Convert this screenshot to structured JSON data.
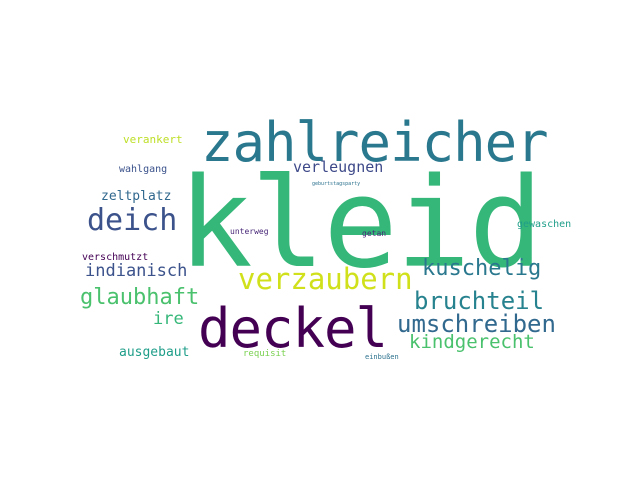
{
  "words": [
    {
      "text": "kleid",
      "color": "#35b779"
    },
    {
      "text": "zahlreicher",
      "color": "#2a788e"
    },
    {
      "text": "deckel",
      "color": "#440154"
    },
    {
      "text": "verzaubern",
      "color": "#d0e11c"
    },
    {
      "text": "deich",
      "color": "#3b528b"
    },
    {
      "text": "umschreiben",
      "color": "#31688e"
    },
    {
      "text": "bruchteil",
      "color": "#26828e"
    },
    {
      "text": "kuschelig",
      "color": "#2a788e"
    },
    {
      "text": "glaubhaft",
      "color": "#4ac16d"
    },
    {
      "text": "kindgerecht",
      "color": "#4ac16d"
    },
    {
      "text": "indianisch",
      "color": "#3b528b"
    },
    {
      "text": "verleugnen",
      "color": "#3e4989"
    },
    {
      "text": "ire",
      "color": "#35b779"
    },
    {
      "text": "zeltplatz",
      "color": "#31688e"
    },
    {
      "text": "ausgebaut",
      "color": "#1f9e89"
    },
    {
      "text": "verankert",
      "color": "#bddf26"
    },
    {
      "text": "wahlgang",
      "color": "#3b528b"
    },
    {
      "text": "verschmutzt",
      "color": "#440154"
    },
    {
      "text": "gewaschen",
      "color": "#1f9e89"
    },
    {
      "text": "requisit",
      "color": "#7ad151"
    },
    {
      "text": "unterweg",
      "color": "#482878"
    },
    {
      "text": "getan",
      "color": "#482878"
    },
    {
      "text": "einbußen",
      "color": "#2c728e"
    },
    {
      "text": "geburtstagsparty",
      "color": "#2c728e"
    }
  ]
}
